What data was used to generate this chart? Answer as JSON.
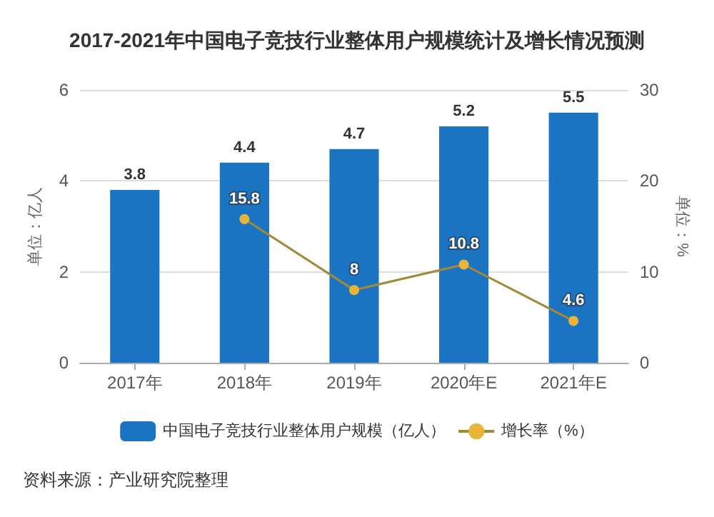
{
  "chart_data": {
    "type": "bar",
    "title": "2017-2021年中国电子竞技行业整体用户规模统计及增长情况预测",
    "categories": [
      "2017年",
      "2018年",
      "2019年",
      "2020年E",
      "2021年E"
    ],
    "series": [
      {
        "name": "中国电子竞技行业整体用户规模（亿人）",
        "color": "#1a74c2",
        "values": [
          3.8,
          4.4,
          4.7,
          5.2,
          5.5
        ]
      },
      {
        "name": "增长率（%）",
        "type": "line",
        "axis": "y2",
        "color": "#e8b53a",
        "values": [
          null,
          15.8,
          8,
          10.8,
          4.6
        ]
      }
    ],
    "ylabel": "单位：亿人",
    "y2label": "单位：%",
    "ylim": [
      0,
      6
    ],
    "yticks": [
      0,
      2,
      4,
      6
    ],
    "y2lim": [
      0,
      30
    ],
    "y2ticks": [
      0,
      10,
      20,
      30
    ],
    "grid": "y",
    "legend": "bottom",
    "data_labels": true,
    "marker": "circle",
    "annotations": [
      "资料来源：产业研究院整理"
    ]
  }
}
